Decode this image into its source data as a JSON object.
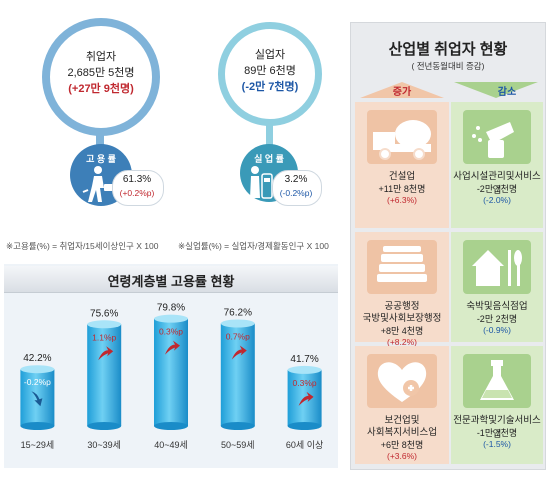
{
  "employed": {
    "title": "취업자",
    "value": "2,685만 5천명",
    "change": "(+27만 9천명)",
    "rate_label": "고 용 률",
    "rate": "61.3%",
    "rate_change": "(+0.2%p)",
    "formula": "※고용률(%) = 취업자/15세이상인구 X 100"
  },
  "unemployed": {
    "title": "실업자",
    "value": "89만 6천명",
    "change": "(-2만 7천명)",
    "rate_label": "실 업 률",
    "rate": "3.2%",
    "rate_change": "(-0.2%p)",
    "formula": "※실업률(%) = 실업자/경제활동인구 X 100"
  },
  "colors": {
    "employed_accent": "#3d7fb8",
    "unemployed_accent": "#3a9ab8",
    "increase": "#c0282f",
    "decrease": "#1d57a6",
    "bar": "#3db7e6"
  },
  "chart_data": {
    "type": "bar",
    "title": "연령계층별 고용률 현황",
    "categories": [
      "15~29세",
      "30~39세",
      "40~49세",
      "50~59세",
      "60세 이상"
    ],
    "values": [
      42.2,
      75.6,
      79.8,
      76.2,
      41.7
    ],
    "value_labels": [
      "42.2%",
      "75.6%",
      "79.8%",
      "76.2%",
      "41.7%"
    ],
    "changes": [
      "-0.2%p",
      "1.1%p",
      "0.3%p",
      "0.7%p",
      "0.3%p"
    ],
    "change_direction": [
      "down",
      "up",
      "up",
      "up",
      "up"
    ],
    "ylim": [
      0,
      100
    ],
    "grid": false
  },
  "industry": {
    "title": "산업별 취업자 현황",
    "subtitle": "( 전년동월대비 증감)",
    "increase_label": "증가",
    "decrease_label": "감소",
    "increase": [
      {
        "name_lines": [
          "건설업"
        ],
        "value": "+11만 8천명",
        "pct": "(+6.3%)",
        "icon": "cement-truck-icon"
      },
      {
        "name_lines": [
          "공공행정",
          "국방및사회보장행정"
        ],
        "value": "+8만 4천명",
        "pct": "(+8.2%)",
        "icon": "documents-stack-icon"
      },
      {
        "name_lines": [
          "보건업및",
          "사회복지서비스업"
        ],
        "value": "+6만 8천명",
        "pct": "(+3.6%)",
        "icon": "heart-cross-icon"
      }
    ],
    "decrease": [
      {
        "name_lines": [
          "사업시설관리및서비스업"
        ],
        "value": "-2만 7천명",
        "pct": "(-2.0%)",
        "icon": "cleaning-spray-icon"
      },
      {
        "name_lines": [
          "숙박및음식점업"
        ],
        "value": "-2만 2천명",
        "pct": "(-0.9%)",
        "icon": "house-fork-icon"
      },
      {
        "name_lines": [
          "전문과학및기술서비스업"
        ],
        "value": "-1만 7천명",
        "pct": "(-1.5%)",
        "icon": "flask-icon"
      }
    ]
  }
}
